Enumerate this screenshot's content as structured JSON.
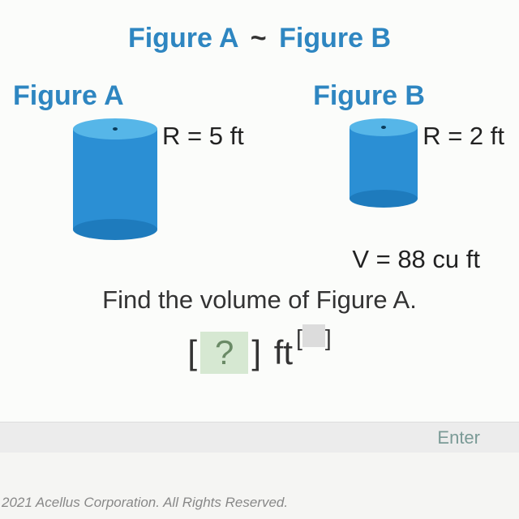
{
  "title": {
    "figA": "Figure A",
    "tilde": "~",
    "figB": "Figure B"
  },
  "labels": {
    "figA": "Figure A",
    "figB": "Figure B"
  },
  "figA": {
    "radius_label": "R = 5 ft",
    "cylinder": {
      "width": 104,
      "height": 150,
      "ellipse_h": 26,
      "top_color": "#56b6e8",
      "body_color": "#2b8fd4",
      "bot_color": "#1e7bbd"
    }
  },
  "figB": {
    "radius_label": "R = 2 ft",
    "volume_label": "V = 88 cu ft",
    "cylinder": {
      "width": 84,
      "height": 110,
      "ellipse_h": 22,
      "top_color": "#56b6e8",
      "body_color": "#2b8fd4",
      "bot_color": "#1e7bbd"
    }
  },
  "prompt": "Find the volume of Figure A.",
  "answer": {
    "placeholder": "?",
    "unit": "ft"
  },
  "enter_label": "Enter",
  "footer": "2021 Acellus Corporation.  All Rights Reserved."
}
